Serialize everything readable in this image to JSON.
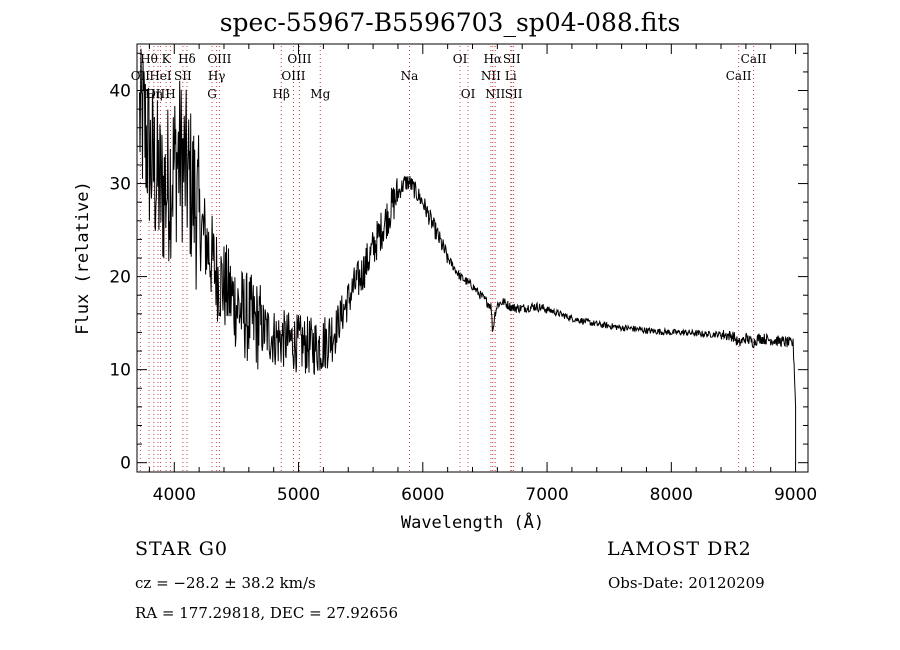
{
  "chart_data": {
    "type": "line",
    "title": "spec-55967-B5596703_sp04-088.fits",
    "xlabel": "Wavelength (Å)",
    "ylabel": "Flux (relative)",
    "xlim": [
      3700,
      9100
    ],
    "ylim": [
      -1,
      45
    ],
    "xticks": [
      4000,
      5000,
      6000,
      7000,
      8000,
      9000
    ],
    "yticks": [
      0,
      10,
      20,
      30,
      40
    ],
    "grid": false,
    "colors": {
      "axes": "#000000",
      "spectrum": "#000000",
      "line_markers": "#d04040"
    },
    "spectrum_anchor_points": {
      "x": [
        3720,
        3760,
        3800,
        3850,
        3900,
        3950,
        4000,
        4050,
        4100,
        4150,
        4200,
        4250,
        4300,
        4350,
        4400,
        4450,
        4500,
        4550,
        4600,
        4650,
        4700,
        4750,
        4800,
        4850,
        4900,
        4950,
        5000,
        5050,
        5100,
        5150,
        5200,
        5250,
        5300,
        5350,
        5400,
        5450,
        5500,
        5550,
        5600,
        5650,
        5700,
        5750,
        5800,
        5850,
        5880,
        5900,
        5950,
        6000,
        6050,
        6100,
        6150,
        6200,
        6250,
        6300,
        6350,
        6400,
        6450,
        6500,
        6550,
        6562,
        6580,
        6600,
        6650,
        6700,
        6750,
        6800,
        6850,
        6900,
        7000,
        7100,
        7200,
        7300,
        7400,
        7500,
        7600,
        7700,
        7800,
        7900,
        8000,
        8100,
        8200,
        8300,
        8400,
        8500,
        8542,
        8600,
        8662,
        8700,
        8800,
        8900,
        8980,
        8990,
        9000
      ],
      "y": [
        37,
        36,
        33,
        31,
        29,
        30,
        32,
        33,
        31,
        29,
        26,
        24,
        22,
        20,
        19,
        18,
        17,
        16,
        15.5,
        15,
        14.5,
        14,
        13.5,
        13.3,
        13.2,
        13,
        12.8,
        12.6,
        12.5,
        12.5,
        12.8,
        13.5,
        14.5,
        16,
        17.5,
        19,
        20,
        21.5,
        23,
        24.5,
        26,
        27.5,
        29,
        30,
        30.2,
        30,
        29,
        28,
        26.5,
        25,
        23.5,
        22,
        21,
        20,
        19.5,
        19,
        18.2,
        17.5,
        16.8,
        14,
        16,
        17,
        17.3,
        16.8,
        16.6,
        16.6,
        16.7,
        16.8,
        16.5,
        16,
        15.5,
        15.2,
        14.9,
        14.7,
        14.5,
        14.4,
        14.2,
        14.1,
        14,
        14,
        13.9,
        13.8,
        13.8,
        13.6,
        12.8,
        13.4,
        12.9,
        13.4,
        13.2,
        13,
        12.8,
        10,
        6
      ]
    },
    "line_markers": [
      {
        "label": "Hθ",
        "x": 3797,
        "row": 0
      },
      {
        "label": "OII",
        "x": 3727,
        "row": 1
      },
      {
        "label": "OIII",
        "x": 3869,
        "row": 2
      },
      {
        "label": "Hη",
        "x": 3835,
        "row": 2
      },
      {
        "label": "HeI",
        "x": 3889,
        "row": 1
      },
      {
        "label": "K",
        "x": 3934,
        "row": 0
      },
      {
        "label": "SII",
        "x": 4069,
        "row": 1
      },
      {
        "label": "H",
        "x": 3969,
        "row": 2
      },
      {
        "label": "Hδ",
        "x": 4102,
        "row": 0
      },
      {
        "label": "OIII",
        "x": 4363,
        "row": 0
      },
      {
        "label": "Hγ",
        "x": 4341,
        "row": 1
      },
      {
        "label": "G",
        "x": 4304,
        "row": 2
      },
      {
        "label": "OIII",
        "x": 5007,
        "row": 0
      },
      {
        "label": "OIII",
        "x": 4959,
        "row": 1
      },
      {
        "label": "Hβ",
        "x": 4861,
        "row": 2
      },
      {
        "label": "Mg",
        "x": 5175,
        "row": 2
      },
      {
        "label": "Na",
        "x": 5893,
        "row": 1
      },
      {
        "label": "OI",
        "x": 6300,
        "row": 0
      },
      {
        "label": "OI",
        "x": 6364,
        "row": 2
      },
      {
        "label": "Hα",
        "x": 6563,
        "row": 0
      },
      {
        "label": "SII",
        "x": 6716,
        "row": 0
      },
      {
        "label": "NII",
        "x": 6548,
        "row": 1
      },
      {
        "label": "Li",
        "x": 6708,
        "row": 1
      },
      {
        "label": "NII",
        "x": 6583,
        "row": 2
      },
      {
        "label": "SII",
        "x": 6731,
        "row": 2
      },
      {
        "label": "CaII",
        "x": 8662,
        "row": 0
      },
      {
        "label": "CaII",
        "x": 8542,
        "row": 1
      }
    ]
  },
  "info": {
    "star_class": "STAR   G0",
    "cz": "cz = −28.2 ± 38.2 km/s",
    "radec": "RA = 177.29818, DEC =  27.92656",
    "survey": "LAMOST DR2",
    "obs_date": "Obs-Date: 20120209"
  }
}
